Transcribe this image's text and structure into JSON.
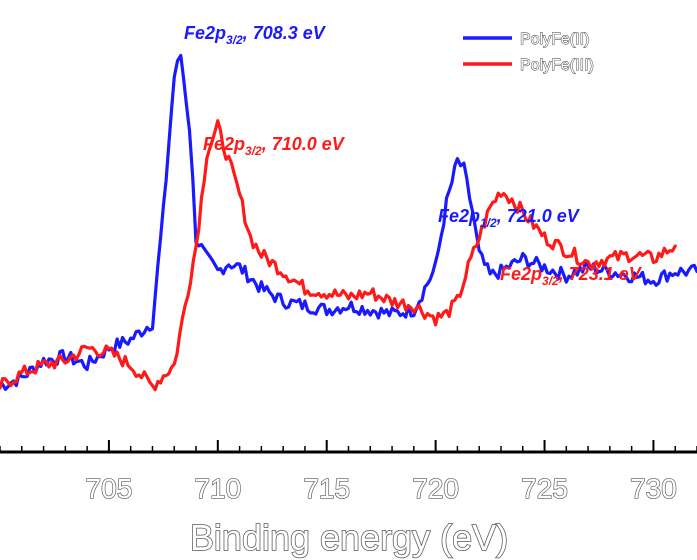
{
  "chart_data": {
    "type": "line",
    "title": "",
    "xlabel": "Binding energy (eV)",
    "ylabel": "",
    "xlim": [
      700,
      732
    ],
    "ylim": [
      0,
      100
    ],
    "xticks": [
      705,
      710,
      715,
      720,
      725,
      730
    ],
    "grid": false,
    "legend_position": "top-right",
    "series": [
      {
        "name": "PolyFe(II)",
        "color": "#1a1aff",
        "x": [
          700,
          701,
          702,
          703,
          704,
          705,
          706,
          707,
          707.5,
          708,
          708.3,
          708.7,
          709,
          709.5,
          710,
          710.5,
          711,
          712,
          713,
          714,
          715,
          716,
          717,
          718,
          719,
          719.5,
          720,
          720.5,
          721,
          721.3,
          721.7,
          722,
          722.5,
          723,
          724,
          725,
          726,
          727,
          728,
          729,
          730,
          731,
          732
        ],
        "values": [
          15,
          17,
          21,
          22,
          20,
          24,
          26,
          30,
          56,
          88,
          93,
          76,
          50,
          45,
          42,
          44,
          43,
          38,
          35,
          34,
          33,
          34,
          33,
          32,
          33,
          38,
          43,
          58,
          68,
          66,
          56,
          46,
          41,
          42,
          45,
          43,
          41,
          43,
          42,
          41,
          40,
          42,
          42
        ]
      },
      {
        "name": "PolyFe(III)",
        "color": "#ff1a1a",
        "x": [
          700,
          701,
          702,
          703,
          704,
          705,
          706,
          707,
          708,
          709,
          709.5,
          710,
          710.5,
          711,
          711.5,
          712,
          713,
          714,
          715,
          716,
          717,
          718,
          719,
          720,
          720.5,
          721,
          721.5,
          722,
          722.5,
          723,
          723.5,
          724,
          725,
          726,
          727,
          728,
          729,
          730,
          731
        ],
        "values": [
          15,
          18,
          20,
          21,
          24,
          23,
          20,
          15,
          20,
          48,
          70,
          76,
          68,
          60,
          50,
          46,
          42,
          38,
          37,
          36,
          37,
          35,
          34,
          31,
          32,
          35,
          43,
          50,
          57,
          61,
          59,
          56,
          50,
          47,
          44,
          45,
          46,
          45,
          48
        ]
      }
    ],
    "annotations": [
      {
        "text_main": "Fe2p",
        "sub": "3/2",
        "text_rest": ", 708.3 eV",
        "series": "PolyFe(II)",
        "x": 708.3,
        "y": 93
      },
      {
        "text_main": "Fe2p",
        "sub": "3/2",
        "text_rest": ", 710.0 eV",
        "series": "PolyFe(III)",
        "x": 710.0,
        "y": 76
      },
      {
        "text_main": "Fe2p",
        "sub": "1/2",
        "text_rest": ", 721.0 eV",
        "series": "PolyFe(II)",
        "x": 721.0,
        "y": 68
      },
      {
        "text_main": "Fe2p",
        "sub": "3/2",
        "text_rest": ", 723.1 eV",
        "series": "PolyFe(III)",
        "x": 723.1,
        "y": 61
      }
    ]
  }
}
